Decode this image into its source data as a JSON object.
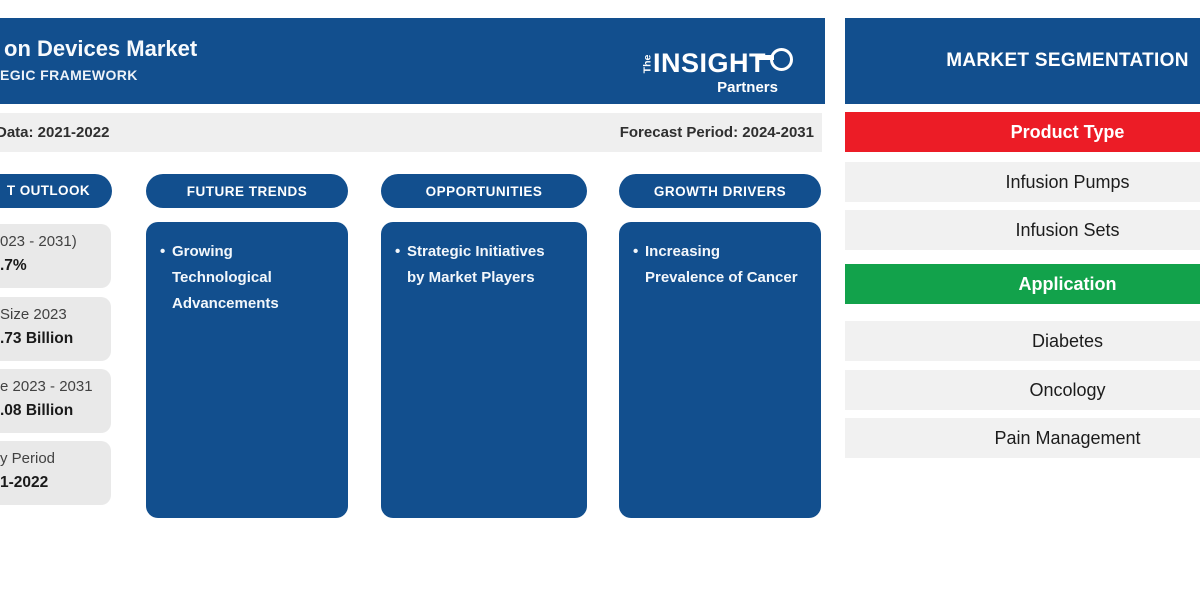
{
  "header": {
    "title": "on Devices Market",
    "subtitle": "EGIC FRAMEWORK",
    "logo": {
      "the": "The",
      "insight": "INSIGHT",
      "partners": "Partners"
    }
  },
  "period_bar": {
    "historic": "Data: 2021-2022",
    "forecast": "Forecast Period: 2024-2031"
  },
  "market_outlook": {
    "pill_label": "T OUTLOOK",
    "stats": [
      {
        "label": "023 - 2031)",
        "value": ".7%"
      },
      {
        "label": "Size 2023",
        "value": ".73 Billion"
      },
      {
        "label": "e 2023 - 2031",
        "value": ".08 Billion"
      },
      {
        "label": "y Period",
        "value": "1-2022"
      }
    ]
  },
  "insight_columns": [
    {
      "pill_label": "FUTURE TRENDS",
      "bullet": "•",
      "lines": [
        "Growing",
        "Technological",
        "Advancements"
      ]
    },
    {
      "pill_label": "OPPORTUNITIES",
      "bullet": "•",
      "lines": [
        "Strategic Initiatives",
        "by Market Players"
      ]
    },
    {
      "pill_label": "GROWTH DRIVERS",
      "bullet": "•",
      "lines": [
        "Increasing",
        "Prevalence of Cancer"
      ]
    }
  ],
  "segmentation": {
    "title": "MARKET SEGMENTATION",
    "groups": [
      {
        "header": "Product Type",
        "accent": "#EC1C26",
        "items": [
          "Infusion Pumps",
          "Infusion Sets"
        ]
      },
      {
        "header": "Application",
        "accent": "#12A24B",
        "items": [
          "Diabetes",
          "Oncology",
          "Pain Management"
        ]
      }
    ]
  },
  "colors": {
    "brand_blue": "#124F8E",
    "product_type_red": "#EC1C26",
    "application_green": "#12A24B",
    "row_gray": "#F1F1F1",
    "outlook_box_gray": "#E9E9E9",
    "period_bar_gray": "#EFEFEF"
  }
}
